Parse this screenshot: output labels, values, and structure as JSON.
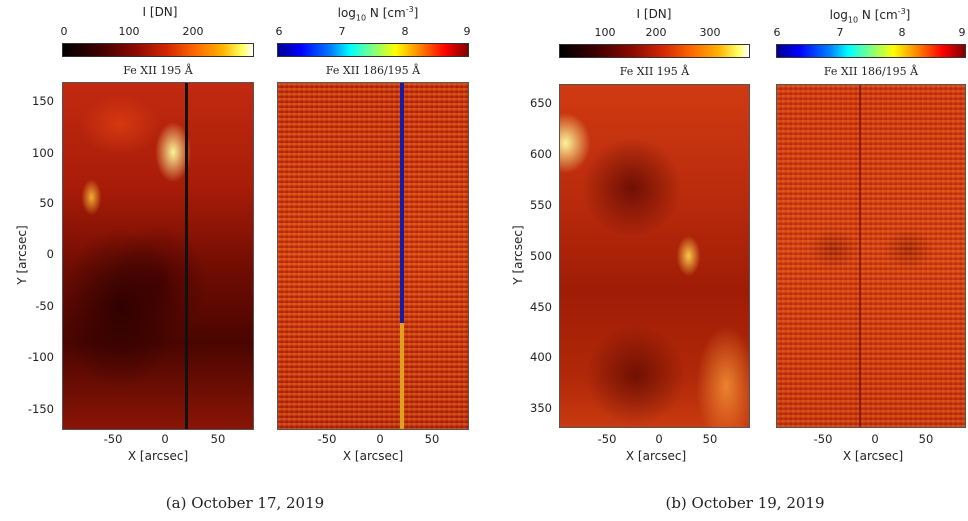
{
  "panel_a": {
    "caption": "(a) October 17, 2019",
    "intensity": {
      "colorbar_label": "I [DN]",
      "colorbar_ticks": [
        "0",
        "100",
        "200"
      ],
      "title": "Fe XII 195 Å",
      "xlabel": "X [arcsec]",
      "ylabel": "Y [arcsec]",
      "x_ticks": [
        "-50",
        "0",
        "50"
      ],
      "y_ticks": [
        "150",
        "100",
        "50",
        "0",
        "-50",
        "-100",
        "-150"
      ]
    },
    "density": {
      "colorbar_label_base": "log",
      "colorbar_label_sub": "10",
      "colorbar_label_rest": " N [cm",
      "colorbar_label_sup": "-3",
      "colorbar_label_end": "]",
      "colorbar_ticks": [
        "6",
        "7",
        "8",
        "9"
      ],
      "title": "Fe XII 186/195 Å",
      "xlabel": "X [arcsec]",
      "x_ticks": [
        "-50",
        "0",
        "50"
      ]
    }
  },
  "panel_b": {
    "caption": "(b) October 19, 2019",
    "intensity": {
      "colorbar_label": "I [DN]",
      "colorbar_ticks": [
        "100",
        "200",
        "300"
      ],
      "title": "Fe XII 195 Å",
      "xlabel": "X [arcsec]",
      "ylabel": "Y [arcsec]",
      "x_ticks": [
        "-50",
        "0",
        "50"
      ],
      "y_ticks": [
        "650",
        "600",
        "550",
        "500",
        "450",
        "400",
        "350"
      ]
    },
    "density": {
      "colorbar_label_base": "log",
      "colorbar_label_sub": "10",
      "colorbar_label_rest": " N [cm",
      "colorbar_label_sup": "-3",
      "colorbar_label_end": "]",
      "colorbar_ticks": [
        "6",
        "7",
        "8",
        "9"
      ],
      "title": "Fe XII 186/195 Å",
      "xlabel": "X [arcsec]",
      "x_ticks": [
        "-50",
        "0",
        "50"
      ]
    }
  }
}
